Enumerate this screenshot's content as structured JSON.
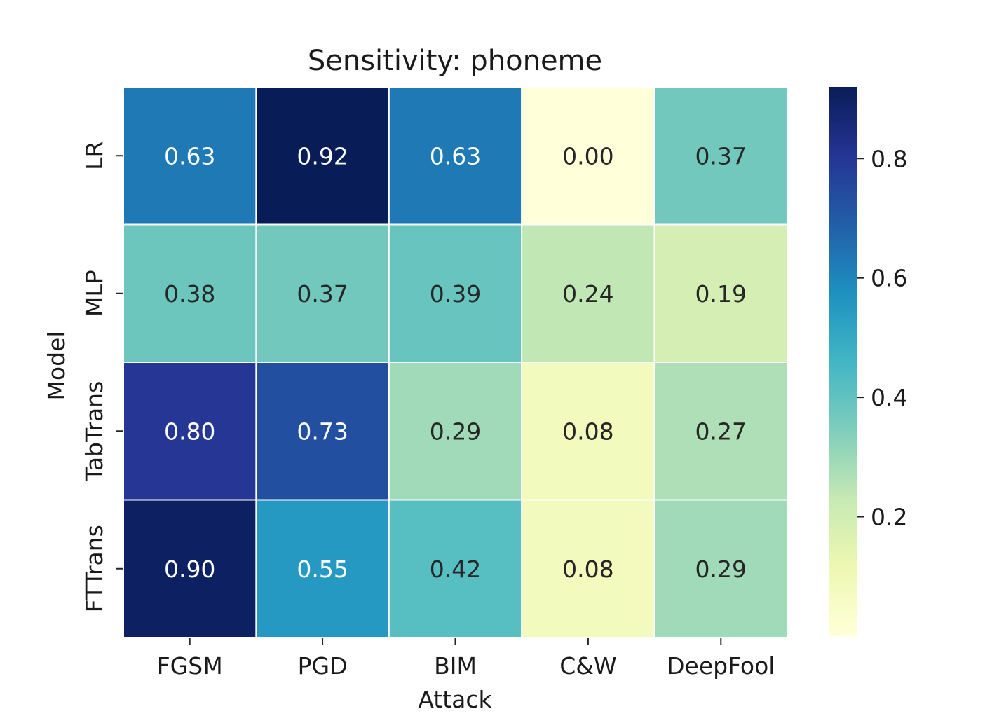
{
  "chart_data": {
    "type": "heatmap",
    "title": "Sensitivity: phoneme",
    "xlabel": "Attack",
    "ylabel": "Model",
    "x_categories": [
      "FGSM",
      "PGD",
      "BIM",
      "C&W",
      "DeepFool"
    ],
    "y_categories": [
      "LR",
      "MLP",
      "TabTrans",
      "FTTrans"
    ],
    "values": [
      [
        0.63,
        0.92,
        0.63,
        0.0,
        0.37
      ],
      [
        0.38,
        0.37,
        0.39,
        0.24,
        0.19
      ],
      [
        0.8,
        0.73,
        0.29,
        0.08,
        0.27
      ],
      [
        0.9,
        0.55,
        0.42,
        0.08,
        0.29
      ]
    ],
    "labels": [
      [
        "0.63",
        "0.92",
        "0.63",
        "0.00",
        "0.37"
      ],
      [
        "0.38",
        "0.37",
        "0.39",
        "0.24",
        "0.19"
      ],
      [
        "0.80",
        "0.73",
        "0.29",
        "0.08",
        "0.27"
      ],
      [
        "0.90",
        "0.55",
        "0.42",
        "0.08",
        "0.29"
      ]
    ],
    "vmin": 0.0,
    "vmax": 0.92,
    "colormap": "YlGnBu",
    "colorbar_ticks": [
      0.2,
      0.4,
      0.6,
      0.8
    ],
    "colorbar_tick_labels": [
      "0.2",
      "0.4",
      "0.6",
      "0.8"
    ],
    "colormap_stops": [
      "#ffffd9",
      "#edf8b1",
      "#c7e9b4",
      "#7fcdbb",
      "#41b6c4",
      "#1d91c0",
      "#225ea8",
      "#253494",
      "#081d58"
    ]
  }
}
